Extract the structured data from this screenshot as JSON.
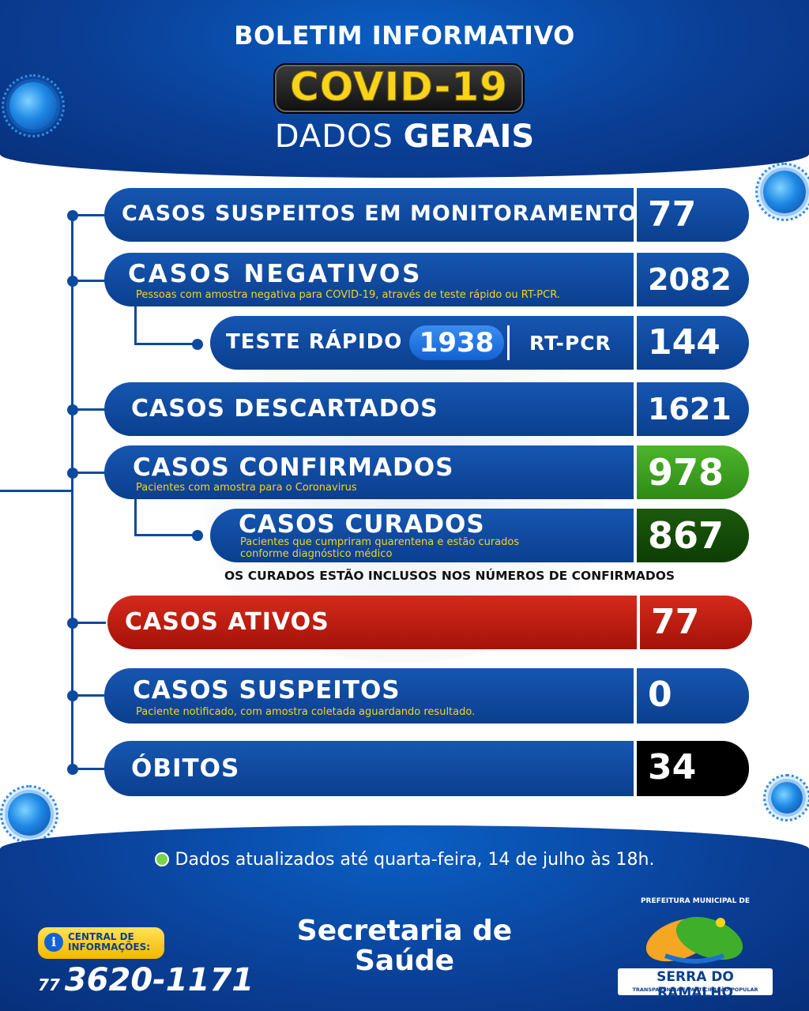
{
  "header": {
    "title": "BOLETIM INFORMATIVO",
    "covid": "COVID-19",
    "dados_light": "DADOS",
    "dados_bold": "GERAIS"
  },
  "rows": {
    "monitoramento": {
      "label": "CASOS SUSPEITOS EM MONITORAMENTO",
      "value": "77"
    },
    "negativos": {
      "label": "CASOS NEGATIVOS",
      "sub": "Pessoas com amostra negativa para COVID-19, através de teste rápido ou RT-PCR.",
      "value": "2082"
    },
    "testes": {
      "rapido_label": "TESTE RÁPIDO",
      "rapido_value": "1938",
      "rtpcr_label": "RT-PCR",
      "rtpcr_value": "144"
    },
    "descartados": {
      "label": "CASOS DESCARTADOS",
      "value": "1621"
    },
    "confirmados": {
      "label": "CASOS CONFIRMADOS",
      "sub": "Pacientes com amostra para o Coronavirus",
      "value": "978"
    },
    "curados": {
      "label": "CASOS CURADOS",
      "sub1": "Pacientes que cumpriram quarentena e estão curados",
      "sub2": "conforme diagnóstico médico",
      "value": "867"
    },
    "note": "OS CURADOS ESTÃO INCLUSOS NOS NÚMEROS DE CONFIRMADOS",
    "ativos": {
      "label": "CASOS ATIVOS",
      "value": "77"
    },
    "suspeitos": {
      "label": "CASOS SUSPEITOS",
      "sub": "Paciente notificado, com amostra coletada aguardando resultado.",
      "value": "0"
    },
    "obitos": {
      "label": "ÓBITOS",
      "value": "34"
    }
  },
  "footer": {
    "updated": "Dados atualizados até quarta-feira, 14 de julho às 18h.",
    "central_line1": "CENTRAL DE",
    "central_line2": "INFORMAÇÕES:",
    "phone_ddd": "77",
    "phone": "3620-1171",
    "secretaria1": "Secretaria de",
    "secretaria2": "Saúde",
    "logo_top": "PREFEITURA MUNICIPAL DE",
    "logo_name": "SERRA DO RAMALHO",
    "logo_tag": "TRANSPARÊNCIA E PARTICIPAÇÃO POPULAR"
  },
  "colors": {
    "blue": "#0b3f8f",
    "yellow": "#f7d31c",
    "green": "#3a9a1f",
    "dark_green": "#154a08",
    "red": "#c41e12",
    "black": "#000000"
  }
}
